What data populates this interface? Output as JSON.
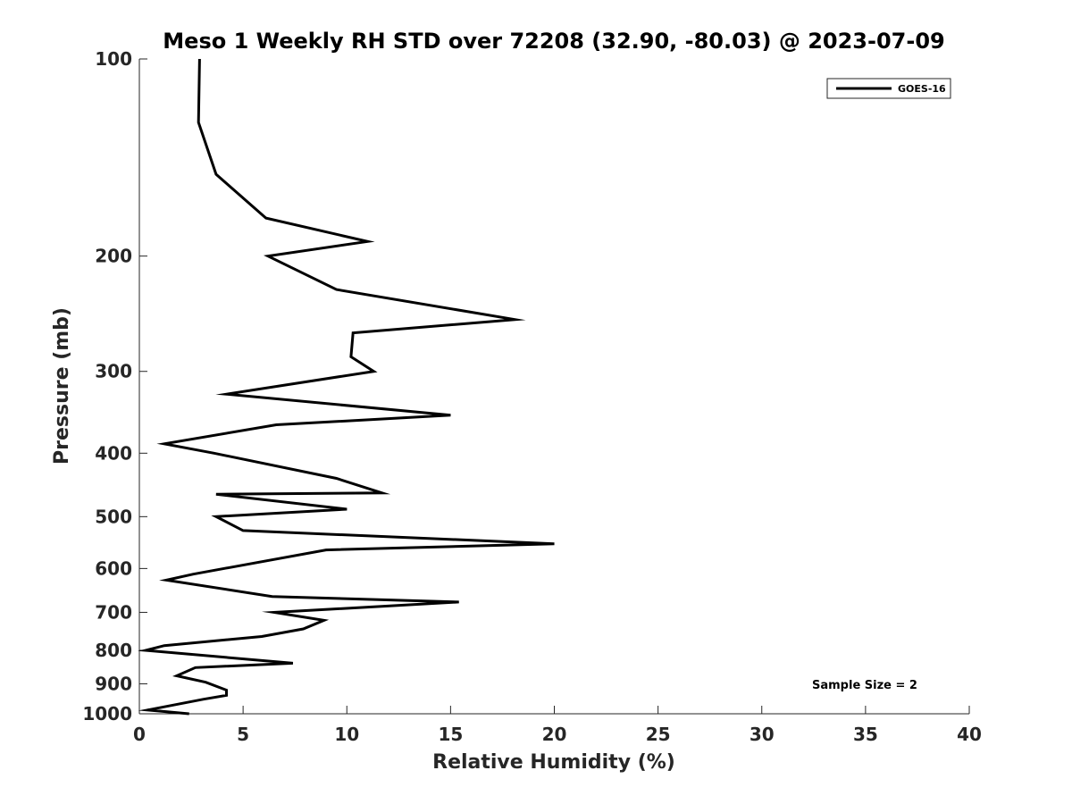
{
  "chart_data": {
    "type": "line",
    "title": "Meso 1 Weekly RH STD over 72208 (32.90, -80.03) @ 2023-07-09",
    "xlabel": "Relative Humidity (%)",
    "ylabel": "Pressure (mb)",
    "xlim": [
      0,
      40
    ],
    "ylim": [
      100,
      1000
    ],
    "y_scale": "log",
    "y_reversed": true,
    "x_ticks": [
      0,
      5,
      10,
      15,
      20,
      25,
      30,
      35,
      40
    ],
    "x_tick_labels": [
      "0",
      "5",
      "10",
      "15",
      "20",
      "25",
      "30",
      "35",
      "40"
    ],
    "y_ticks": [
      100,
      200,
      300,
      400,
      500,
      600,
      700,
      800,
      900,
      1000
    ],
    "y_tick_labels": [
      "100",
      "200",
      "300",
      "400",
      "500",
      "600",
      "700",
      "800",
      "900",
      "1000"
    ],
    "grid": false,
    "legend_position": "top-right",
    "series": [
      {
        "name": "GOES-16",
        "color": "#000000",
        "x": [
          2.9,
          2.85,
          3.7,
          6.1,
          11.0,
          6.2,
          9.5,
          18.1,
          10.3,
          10.2,
          11.3,
          4.2,
          15.0,
          6.6,
          1.2,
          3.6,
          9.5,
          11.7,
          3.7,
          10.0,
          3.7,
          5.0,
          20.0,
          9.0,
          2.6,
          1.3,
          6.4,
          15.4,
          6.5,
          8.9,
          7.9,
          5.9,
          1.2,
          0.3,
          7.4,
          2.7,
          1.8,
          3.2,
          4.2,
          4.2,
          3.1,
          0.4,
          2.4
        ],
        "y": [
          100,
          125,
          150,
          175,
          190,
          200,
          225,
          250,
          262,
          285,
          300,
          325,
          350,
          362,
          387,
          400,
          437,
          460,
          462,
          487,
          500,
          525,
          550,
          562,
          612,
          625,
          662,
          675,
          700,
          720,
          742,
          762,
          787,
          800,
          837,
          850,
          875,
          895,
          920,
          937,
          950,
          987,
          1000
        ]
      }
    ],
    "annotations": [
      "Sample Size = 2"
    ]
  }
}
